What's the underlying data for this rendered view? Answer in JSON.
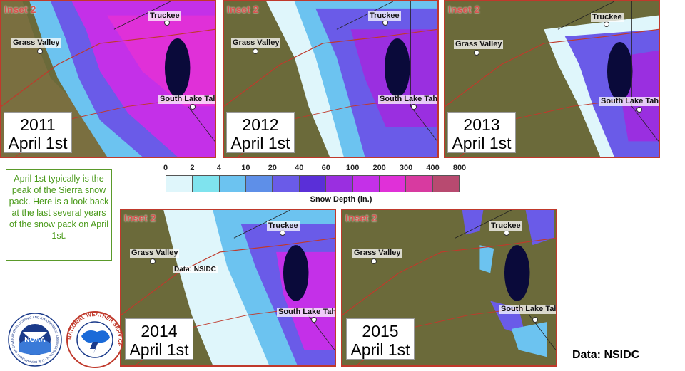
{
  "panels": [
    {
      "inset": "Inset 2",
      "year": "2011",
      "date": "April 1st",
      "snow": "heavy"
    },
    {
      "inset": "Inset 2",
      "year": "2012",
      "date": "April 1st",
      "snow": "medium"
    },
    {
      "inset": "Inset 2",
      "year": "2013",
      "date": "April 1st",
      "snow": "light"
    },
    {
      "inset": "Inset 2",
      "year": "2014",
      "date": "April 1st",
      "snow": "medium-light"
    },
    {
      "inset": "Inset 2",
      "year": "2015",
      "date": "April 1st",
      "snow": "minimal"
    }
  ],
  "towns": {
    "truckee": "Truckee",
    "grass_valley": "Grass Valley",
    "south_lake_tahoe": "South Lake Tahoe"
  },
  "note": "April 1st typically is the peak of the Sierra snow pack. Here is a look back at the last several years of the snow pack on April 1st.",
  "legend": {
    "title": "Snow Depth (in.)",
    "ticks": [
      "0",
      "2",
      "4",
      "10",
      "20",
      "40",
      "60",
      "100",
      "200",
      "300",
      "400",
      "800"
    ],
    "colors": [
      "#dff6fb",
      "#7fe3ee",
      "#6cc3f0",
      "#5e8fe8",
      "#6a5be8",
      "#5a2fd8",
      "#9a2fe0",
      "#c430e8",
      "#e030d8",
      "#d83aa0",
      "#b84a70",
      "#a8706a"
    ]
  },
  "inline_credit": "Data: NSIDC",
  "data_credit": "Data: NSIDC",
  "logos": {
    "noaa": "NOAA",
    "noaa_ring": "NATIONAL OCEANIC AND ATMOSPHERIC ADMINISTRATION · U.S. DEPARTMENT OF COMMERCE",
    "nws": "NATIONAL WEATHER SERVICE"
  },
  "colors": {
    "border": "#c0392b",
    "terrain": "#6b6a3a",
    "lake": "#0a0a3a",
    "note_text": "#4a9a1a"
  }
}
